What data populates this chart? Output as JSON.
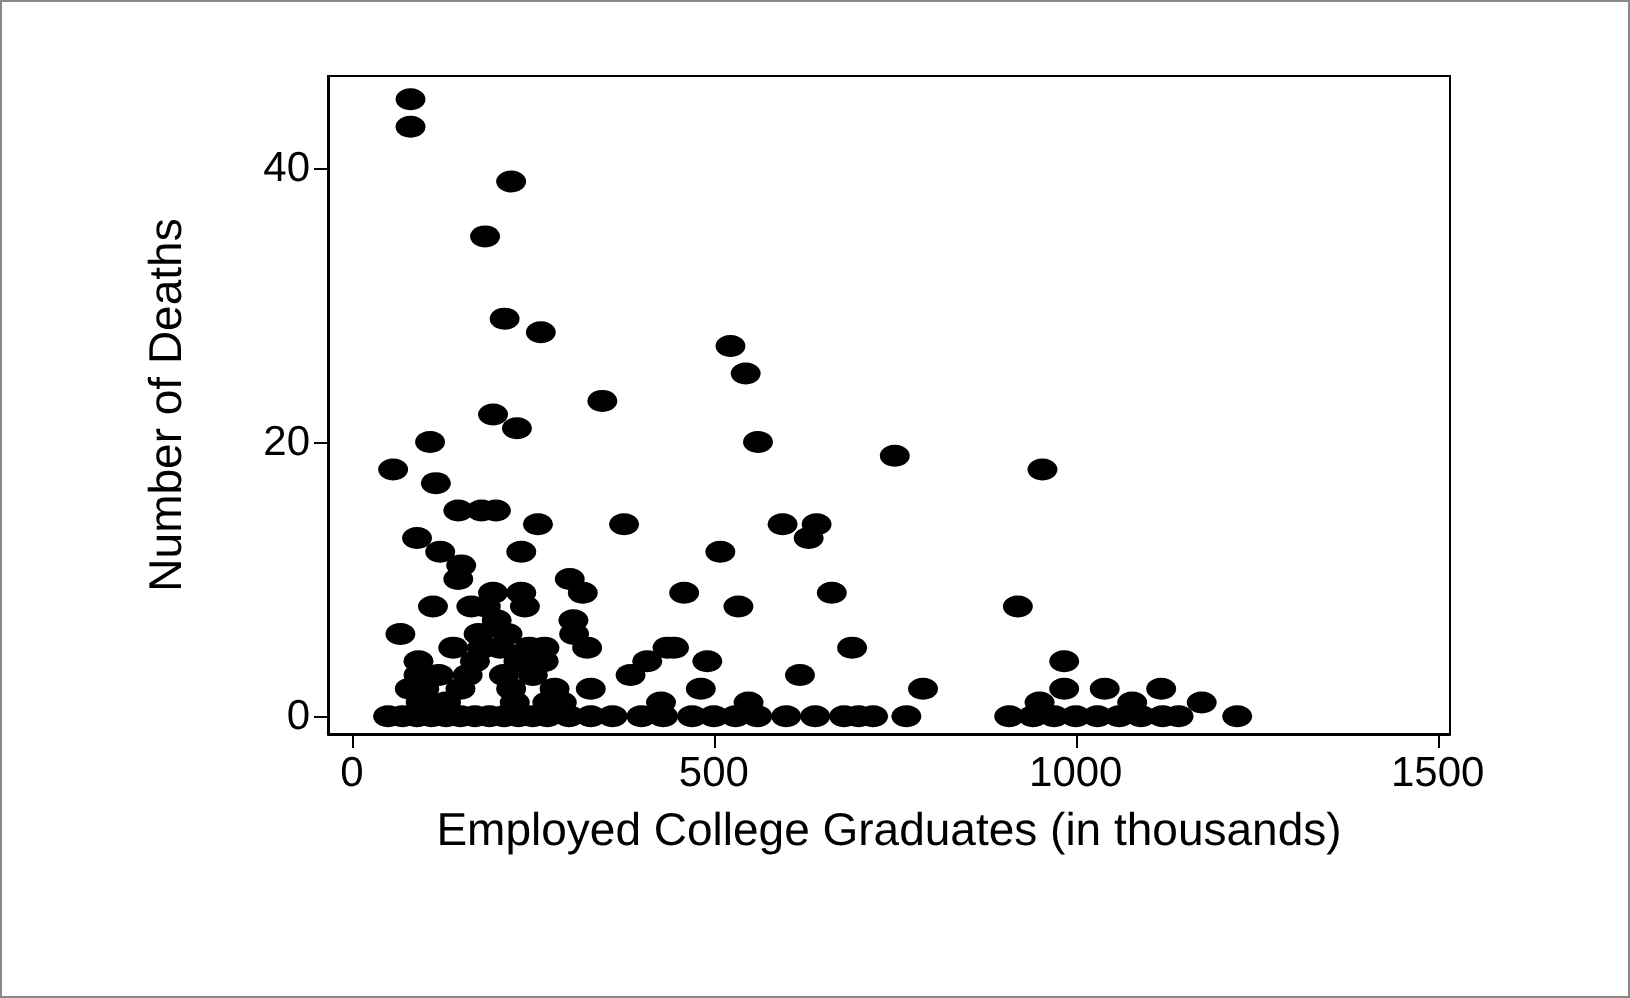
{
  "chart_data": {
    "type": "scatter",
    "xlabel": "Employed College Graduates (in thousands)",
    "ylabel": "Number of Deaths",
    "xlim": [
      -33,
      1517
    ],
    "xticks": [
      0,
      500,
      1000,
      1500
    ],
    "ylim": [
      -1.3,
      46.7
    ],
    "yticks": [
      0,
      20,
      40
    ],
    "grid": false,
    "marker": "circle",
    "series": [
      {
        "color": "#000000",
        "x": [
          81,
          81,
          220,
          184,
          211,
          261,
          523,
          544,
          346,
          195,
          228,
          108,
          561,
          750,
          57,
          116,
          147,
          179,
          199,
          257,
          376,
          595,
          642,
          631,
          90,
          122,
          509,
          234,
          151,
          147,
          301,
          319,
          459,
          663,
          195,
          234,
          112,
          534,
          165,
          239,
          67,
          306,
          307,
          266,
          325,
          691,
          92,
          436,
          408,
          491,
          92,
          619,
          330,
          482,
          385,
          954,
          920,
          445,
          984,
          789,
          984,
          1040,
          1118,
          1078,
          1174,
          950,
          427,
          548,
          50,
          70,
          90,
          110,
          130,
          150,
          170,
          190,
          210,
          230,
          250,
          270,
          300,
          330,
          360,
          400,
          430,
          470,
          500,
          530,
          560,
          600,
          640,
          680,
          700,
          720,
          766,
          908,
          941,
          970,
          1000,
          1030,
          1060,
          1090,
          1120,
          1142,
          1223,
          130,
          150,
          160,
          170,
          180,
          200,
          210,
          220,
          230,
          250,
          270,
          280,
          290,
          100,
          120,
          140,
          175,
          185,
          205,
          215,
          225,
          245,
          265,
          80,
          95
        ],
        "values": [
          45,
          43,
          39,
          35,
          29,
          28,
          27,
          25,
          23,
          22,
          21,
          20,
          20,
          19,
          18,
          17,
          15,
          15,
          15,
          14,
          14,
          14,
          14,
          13,
          13,
          12,
          12,
          12,
          11,
          10,
          10,
          9,
          9,
          9,
          9,
          9,
          8,
          8,
          8,
          8,
          6,
          7,
          6,
          5,
          5,
          5,
          4,
          5,
          4,
          4,
          3,
          3,
          2,
          2,
          3,
          18,
          8,
          5,
          4,
          2,
          2,
          2,
          2,
          1,
          1,
          1,
          1,
          1,
          0,
          0,
          0,
          0,
          0,
          0,
          0,
          0,
          0,
          0,
          0,
          0,
          0,
          0,
          0,
          0,
          0,
          0,
          0,
          0,
          0,
          0,
          0,
          0,
          0,
          0,
          0,
          0,
          0,
          0,
          0,
          0,
          0,
          0,
          0,
          0,
          0,
          1,
          2,
          3,
          4,
          5,
          7,
          3,
          2,
          4,
          3,
          1,
          2,
          1,
          2,
          3,
          5,
          6,
          8,
          5,
          6,
          1,
          5,
          4,
          2,
          1
        ]
      }
    ]
  }
}
